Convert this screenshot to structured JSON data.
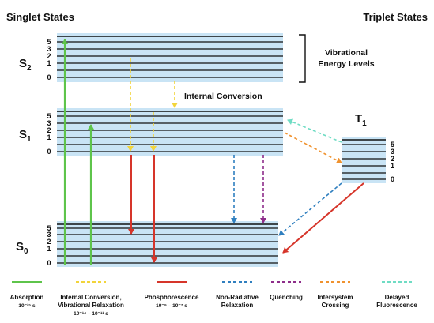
{
  "headers": {
    "singlet": "Singlet States",
    "triplet": "Triplet States"
  },
  "states": [
    {
      "key": "s2",
      "base": "S",
      "sub": "2"
    },
    {
      "key": "s1",
      "base": "S",
      "sub": "1"
    },
    {
      "key": "s0",
      "base": "S",
      "sub": "0"
    },
    {
      "key": "t1",
      "base": "T",
      "sub": "1"
    }
  ],
  "level_labels": [
    "5",
    "3",
    "2",
    "1",
    "0"
  ],
  "annotations": {
    "vibrational_line1": "Vibrational",
    "vibrational_line2": "Energy Levels",
    "internal_conversion": "Internal Conversion"
  },
  "colors": {
    "band_fill": "#c9e4f5",
    "absorption": "#5ec44b",
    "internal_conversion": "#f2d43a",
    "phosphorescence": "#d6352a",
    "non_radiative": "#2f7fbf",
    "quenching": "#8e2d8a",
    "intersystem": "#f0922e",
    "delayed_fluorescence": "#6fdcc4"
  },
  "legend": [
    {
      "key": "absorption",
      "style": "solid",
      "line1": "Absorption",
      "line2": "10⁻¹⁵ s"
    },
    {
      "key": "internal_conversion",
      "style": "dashed",
      "line1": "Internal Conversion,",
      "line2": "Vibrational Relaxation",
      "line3": "10⁻¹⁴ – 10⁻¹¹ s"
    },
    {
      "key": "phosphorescence",
      "style": "solid",
      "line1": "Phosphorescence",
      "line2": "10⁻⁹ – 10⁻⁷ s"
    },
    {
      "key": "non_radiative",
      "style": "dashed",
      "line1": "Non-Radiative",
      "line2": "Relaxation"
    },
    {
      "key": "quenching",
      "style": "dashed",
      "line1": "Quenching"
    },
    {
      "key": "intersystem",
      "style": "dashed",
      "line1": "Intersystem",
      "line2": "Crossing"
    },
    {
      "key": "delayed_fluorescence",
      "style": "dashed",
      "line1": "Delayed",
      "line2": "Fluorescence"
    }
  ]
}
